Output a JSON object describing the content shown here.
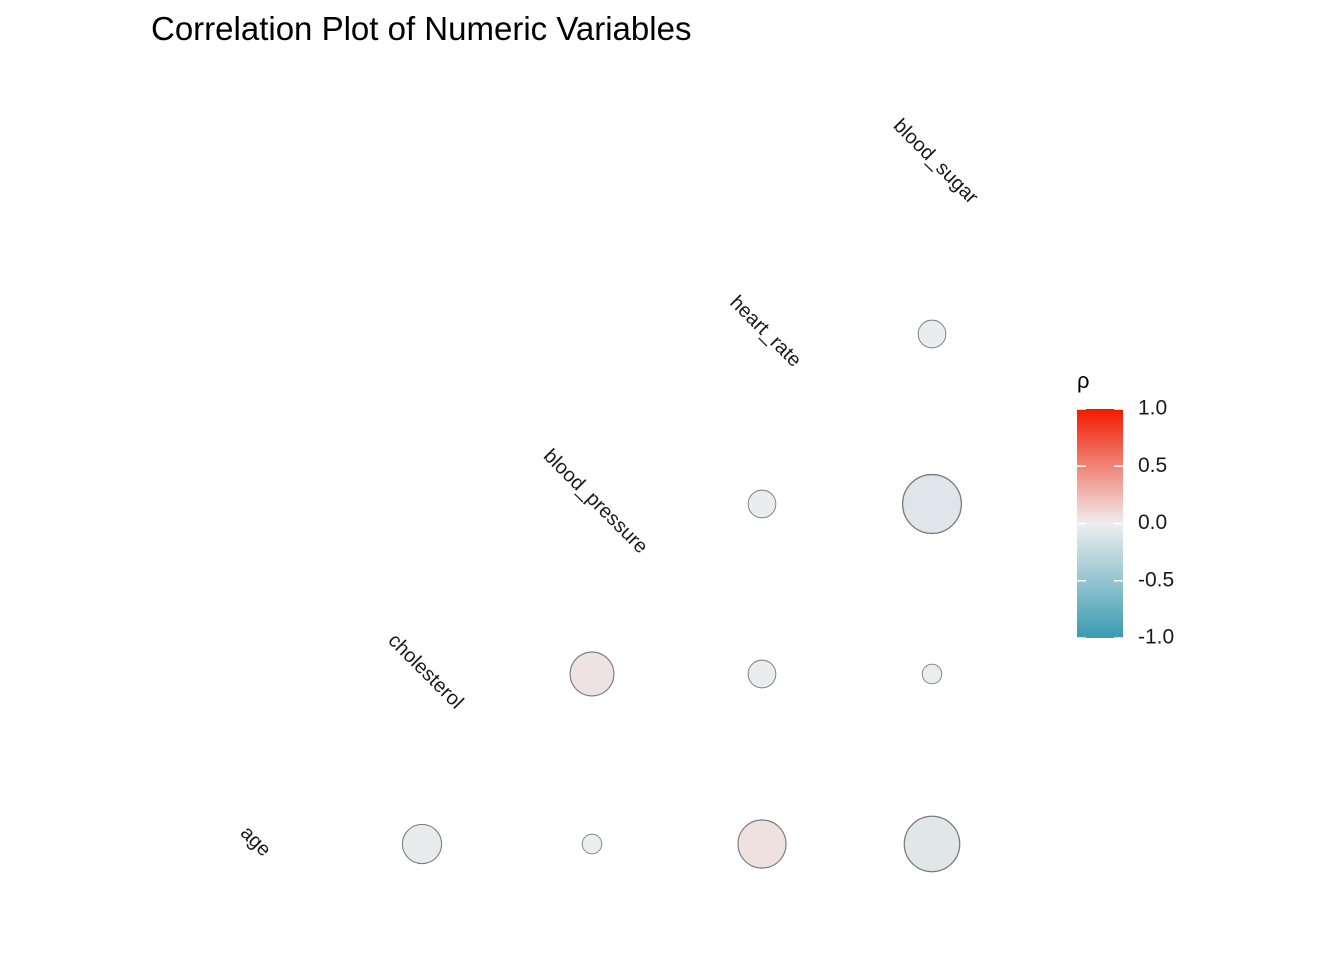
{
  "chart_data": {
    "type": "heatmap",
    "title": "Correlation Plot of Numeric Variables",
    "variables": [
      "age",
      "cholesterol",
      "blood_pressure",
      "heart_rate",
      "blood_sugar"
    ],
    "cells": [
      {
        "row": "age",
        "col": "cholesterol",
        "value": -0.04
      },
      {
        "row": "age",
        "col": "blood_pressure",
        "value": -0.01
      },
      {
        "row": "age",
        "col": "heart_rate",
        "value": 0.06
      },
      {
        "row": "age",
        "col": "blood_sugar",
        "value": -0.08
      },
      {
        "row": "cholesterol",
        "col": "blood_pressure",
        "value": 0.05
      },
      {
        "row": "cholesterol",
        "col": "heart_rate",
        "value": -0.02
      },
      {
        "row": "cholesterol",
        "col": "blood_sugar",
        "value": -0.01
      },
      {
        "row": "blood_pressure",
        "col": "heart_rate",
        "value": -0.02
      },
      {
        "row": "blood_pressure",
        "col": "blood_sugar",
        "value": -0.09
      },
      {
        "row": "heart_rate",
        "col": "blood_sugar",
        "value": -0.02
      }
    ],
    "legend": {
      "title": "ρ",
      "ticks": [
        "1.0",
        "0.5",
        "0.0",
        "-0.5",
        "-1.0"
      ],
      "colors": {
        "high": "#F21A00",
        "mid": "#EEEEEE",
        "low": "#3B9AB2"
      },
      "placement": "right"
    },
    "range": [
      -1,
      1
    ]
  }
}
